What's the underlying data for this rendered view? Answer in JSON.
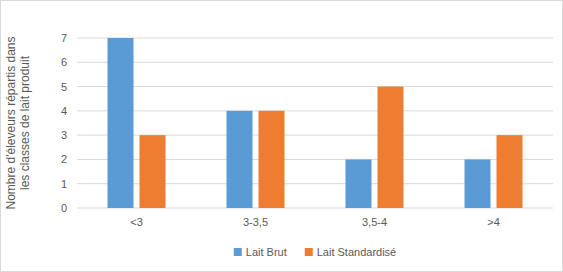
{
  "chart_data": {
    "type": "bar",
    "y_label": "Nombre d'éleveurs répartis dans les classes de lait produit",
    "categories": [
      "<3",
      "3-3,5",
      "3,5-4",
      ">4"
    ],
    "series": [
      {
        "name": "Lait Brut",
        "color": "#5b9bd5",
        "values": [
          7,
          4,
          2,
          2
        ]
      },
      {
        "name": "Lait Standardisé",
        "color": "#ed7d31",
        "values": [
          3,
          4,
          5,
          3
        ]
      }
    ],
    "ylim": [
      0,
      7
    ],
    "yticks": [
      0,
      1,
      2,
      3,
      4,
      5,
      6,
      7
    ],
    "grid": true,
    "legend": "bottom"
  }
}
